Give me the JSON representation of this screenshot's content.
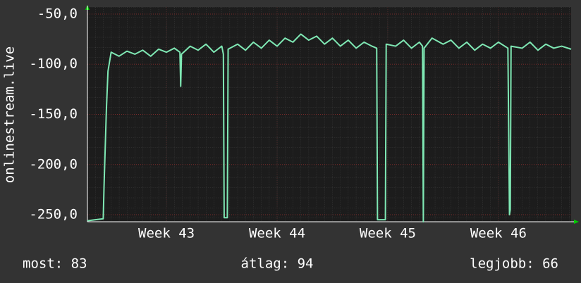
{
  "chart_data": {
    "type": "line",
    "y_label": "onlinestream.live",
    "color": "#7fe8b4",
    "grid": true,
    "x": [
      0,
      0.5,
      1.0,
      1.05,
      1.2,
      1.3,
      1.5,
      2.0,
      2.5,
      3.0,
      3.5,
      4.0,
      4.5,
      5.0,
      5.5,
      5.85,
      5.9,
      5.95,
      6.5,
      7.0,
      7.5,
      8.0,
      8.5,
      8.6,
      8.65,
      8.85,
      8.9,
      9.5,
      10.0,
      10.5,
      11.0,
      11.5,
      12.0,
      12.5,
      13.0,
      13.5,
      14.0,
      14.5,
      15.0,
      15.5,
      16.0,
      16.5,
      17.0,
      17.5,
      18.0,
      18.3,
      18.35,
      18.85,
      18.9,
      19.5,
      20.0,
      20.5,
      21.0,
      21.2,
      21.25,
      21.3,
      21.8,
      22.5,
      23.0,
      23.5,
      24.0,
      24.5,
      25.0,
      25.5,
      26.0,
      26.6,
      26.7,
      26.75,
      26.8,
      27.5,
      28.0,
      28.5,
      29.0,
      29.5,
      30.0,
      30.6
    ],
    "values": [
      -256,
      -255,
      -254,
      -222,
      -145,
      -107,
      -88,
      -92,
      -87,
      -90,
      -86,
      -92,
      -85,
      -88,
      -84,
      -88,
      -122,
      -90,
      -82,
      -86,
      -80,
      -88,
      -82,
      -90,
      -253,
      -253,
      -85,
      -80,
      -86,
      -78,
      -84,
      -76,
      -82,
      -74,
      -78,
      -70,
      -76,
      -72,
      -80,
      -74,
      -82,
      -76,
      -84,
      -78,
      -82,
      -84,
      -255,
      -255,
      -80,
      -82,
      -76,
      -84,
      -78,
      -82,
      -257,
      -84,
      -74,
      -80,
      -76,
      -84,
      -78,
      -86,
      -80,
      -84,
      -78,
      -84,
      -250,
      -245,
      -82,
      -84,
      -78,
      -86,
      -80,
      -84,
      -82,
      -85
    ],
    "xlim": [
      0,
      30.6
    ],
    "xticks": [
      {
        "value": 5,
        "label": "Week 43"
      },
      {
        "value": 12,
        "label": "Week 44"
      },
      {
        "value": 19,
        "label": "Week 45"
      },
      {
        "value": 26,
        "label": "Week 46"
      }
    ],
    "ylim": [
      -257,
      -43
    ],
    "yticks": [
      {
        "value": -250,
        "label": "-250,0"
      },
      {
        "value": -200,
        "label": "-200,0"
      },
      {
        "value": -150,
        "label": "-150,0"
      },
      {
        "value": -100,
        "label": "-100,0"
      },
      {
        "value": -50,
        "label": "-50,0"
      }
    ],
    "stats": [
      "most: 83",
      "átlag: 94",
      "legjobb: 66"
    ]
  }
}
